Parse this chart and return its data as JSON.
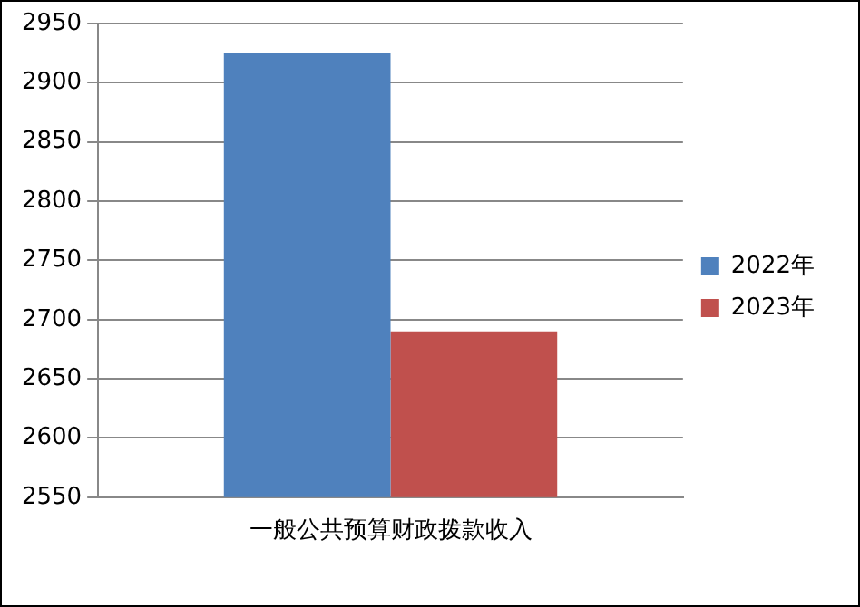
{
  "chart_data": {
    "type": "bar",
    "categories": [
      "一般公共预算财政拨款收入"
    ],
    "series": [
      {
        "name": "2022年",
        "color": "#4f81bd",
        "values": [
          2925
        ]
      },
      {
        "name": "2023年",
        "color": "#c0504d",
        "values": [
          2690
        ]
      }
    ],
    "ylim": [
      2550,
      2950
    ],
    "yticks": [
      2550,
      2600,
      2650,
      2700,
      2750,
      2800,
      2850,
      2900,
      2950
    ],
    "grid": "y",
    "legend": "right"
  }
}
